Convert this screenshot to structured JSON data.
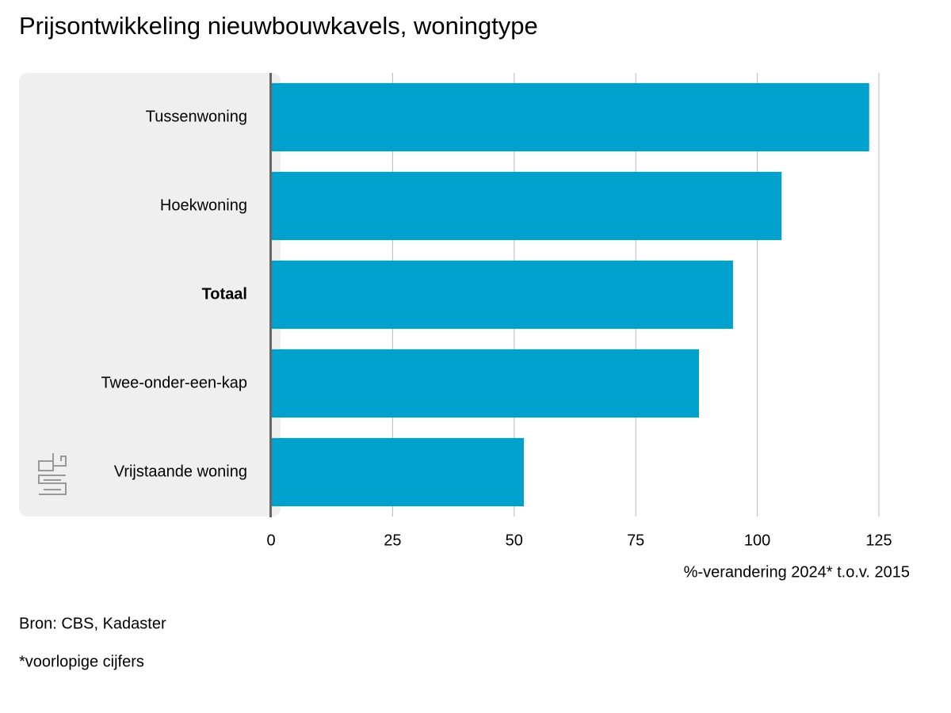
{
  "chart_data": {
    "type": "barh",
    "title": "Prijsontwikkeling nieuwbouwkavels, woningtype",
    "categories": [
      "Tussenwoning",
      "Hoekwoning",
      "Totaal",
      "Twee-onder-een-kap",
      "Vrijstaande woning"
    ],
    "values": [
      123,
      105,
      95,
      88,
      52
    ],
    "color": "#00a1cd",
    "highlight_index": 2,
    "xlim": [
      0,
      125
    ],
    "xticks": [
      0,
      25,
      50,
      75,
      100,
      125
    ],
    "grid": true,
    "x_label": "%-verandering 2024* t.o.v. 2015",
    "source": "Bron: CBS, Kadaster",
    "note": "*voorlopige cijfers"
  }
}
